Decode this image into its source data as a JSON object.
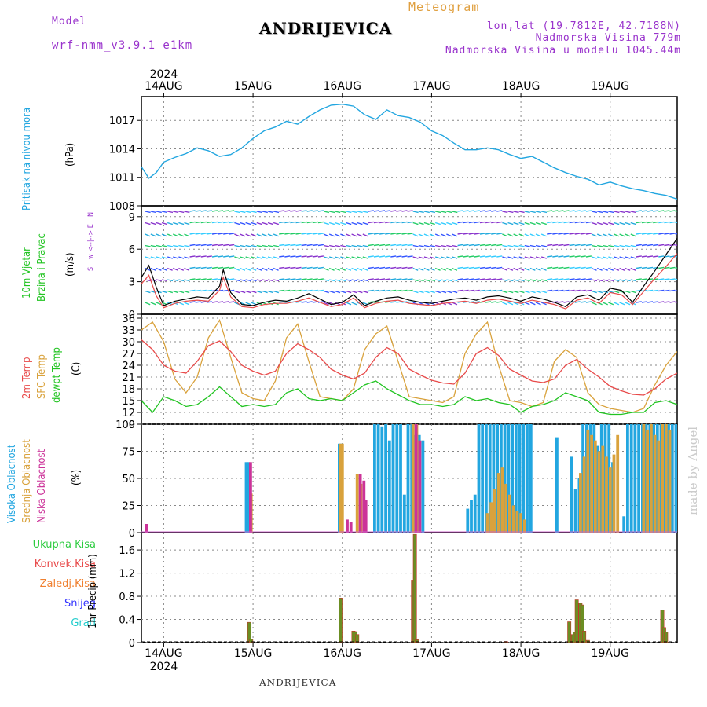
{
  "header": {
    "model_label": "Model",
    "model_name": "wrf-nmm_v3.9.1  e1km",
    "meteogram": "Meteogram",
    "station": "ANDRIJEVICA",
    "lonlat": "lon,lat (19.7812E, 42.7188N)",
    "elevation": "Nadmorska Visina 779m",
    "model_elevation": "Nadmorska Visina u modelu 1045.44m",
    "credit": "made by Angel",
    "footer_station": "ANDRIJEVICA"
  },
  "time_axis": {
    "year": "2024",
    "days": [
      "14AUG",
      "15AUG",
      "16AUG",
      "17AUG",
      "18AUG",
      "19AUG"
    ],
    "start_hour": 0,
    "end_hour": 144
  },
  "labels": {
    "pressure": [
      "Pritisak na nivou mora",
      "(hPa)"
    ],
    "wind": [
      "10m Vjetar",
      "Brzina i Pravac",
      "(m/s)"
    ],
    "compass": [
      "N",
      "w  <--|-->  E",
      "S"
    ],
    "temp": [
      "2m Temp",
      "SFC Temp",
      "dewpt Temp",
      "(C)"
    ],
    "cloud": [
      "Visoka Oblacnost",
      "Srednja Oblacnost",
      "Niska Oblacnost",
      "(%)"
    ],
    "precip_legend": [
      "Ukupna Kisa",
      "Konvek.Kisa",
      "Zaledj.Kisa",
      "Snijeg",
      "Grad"
    ],
    "precip_axis": "1hr Precip (mm)"
  },
  "colors": {
    "pressure": "#22a6e0",
    "temp2m": "#e84a4a",
    "sfc": "#d9a23c",
    "dewpt": "#22c422",
    "wind_speed": "#000000",
    "wind_gust": "#e84a4a",
    "high_cloud": "#22a6e0",
    "mid_cloud": "#d9a23c",
    "low_cloud": "#cc3399",
    "total_precip": "#2ecc40",
    "conv_precip": "#e84a4a",
    "frz_precip": "#f08030",
    "snow": "#3333ff",
    "hail": "#22cccc",
    "precip_bar": "#6b8e23",
    "grid": "#888888"
  },
  "chart_data": [
    {
      "type": "line",
      "name": "pressure",
      "ylabel": "(hPa)",
      "ylim": [
        1008,
        1019.5
      ],
      "yticks": [
        1008,
        1011,
        1014,
        1017
      ],
      "x": [
        0,
        2,
        4,
        6,
        9,
        12,
        15,
        18,
        21,
        24,
        27,
        30,
        33,
        36,
        39,
        42,
        45,
        48,
        51,
        54,
        57,
        60,
        63,
        66,
        69,
        72,
        75,
        78,
        81,
        84,
        87,
        90,
        93,
        96,
        99,
        102,
        105,
        108,
        111,
        114,
        117,
        120,
        123,
        126,
        129,
        132,
        135,
        138,
        141,
        144
      ],
      "series": [
        {
          "values": [
            1012.1,
            1010.9,
            1011.5,
            1012.6,
            1013.1,
            1013.5,
            1014.1,
            1013.8,
            1013.2,
            1013.4,
            1014.1,
            1015.1,
            1015.9,
            1016.3,
            1016.9,
            1016.6,
            1017.4,
            1018.1,
            1018.6,
            1018.7,
            1018.5,
            1017.6,
            1017.1,
            1018.1,
            1017.5,
            1017.3,
            1016.8,
            1015.9,
            1015.4,
            1014.6,
            1013.9,
            1013.9,
            1014.1,
            1013.9,
            1013.4,
            1013.0,
            1013.2,
            1012.6,
            1012.0,
            1011.5,
            1011.1,
            1010.8,
            1010.2,
            1010.5,
            1010.1,
            1009.8,
            1009.6,
            1009.3,
            1009.1,
            1008.7
          ]
        }
      ]
    },
    {
      "type": "line",
      "name": "wind",
      "ylabel": "(m/s)",
      "ylim": [
        0,
        10
      ],
      "yticks": [
        0,
        3,
        6,
        9
      ],
      "x": [
        0,
        2,
        4,
        6,
        9,
        12,
        15,
        18,
        21,
        22,
        24,
        27,
        30,
        33,
        36,
        39,
        42,
        45,
        48,
        51,
        54,
        57,
        60,
        63,
        66,
        69,
        72,
        75,
        78,
        81,
        84,
        87,
        90,
        93,
        96,
        99,
        102,
        105,
        108,
        111,
        114,
        117,
        120,
        123,
        126,
        129,
        132,
        135,
        138,
        141,
        144
      ],
      "series": [
        {
          "name": "speed",
          "values": [
            3.4,
            4.5,
            2.5,
            0.8,
            1.2,
            1.4,
            1.6,
            1.5,
            2.6,
            4.1,
            2.0,
            0.9,
            0.8,
            1.1,
            1.3,
            1.2,
            1.5,
            1.9,
            1.4,
            0.9,
            1.1,
            1.8,
            0.8,
            1.2,
            1.5,
            1.6,
            1.3,
            1.1,
            1.0,
            1.2,
            1.4,
            1.5,
            1.3,
            1.6,
            1.7,
            1.5,
            1.2,
            1.6,
            1.4,
            1.1,
            0.7,
            1.6,
            1.8,
            1.3,
            2.4,
            2.2,
            1.1,
            2.6,
            4.0,
            5.5,
            7.0
          ]
        },
        {
          "name": "gust",
          "values": [
            2.8,
            3.6,
            1.7,
            0.6,
            1.0,
            1.2,
            1.3,
            1.2,
            2.2,
            3.4,
            1.6,
            0.7,
            0.6,
            0.9,
            1.0,
            1.0,
            1.2,
            1.5,
            1.1,
            0.7,
            0.9,
            1.5,
            0.6,
            1.0,
            1.2,
            1.3,
            1.0,
            0.9,
            0.8,
            1.0,
            1.1,
            1.2,
            1.0,
            1.3,
            1.4,
            1.2,
            1.0,
            1.3,
            1.1,
            0.9,
            0.5,
            1.3,
            1.5,
            1.0,
            2.0,
            1.8,
            0.9,
            2.1,
            3.3,
            4.4,
            5.6
          ]
        }
      ]
    },
    {
      "type": "line",
      "name": "temperature",
      "ylabel": "(C)",
      "ylim": [
        9,
        37
      ],
      "yticks": [
        9,
        12,
        15,
        18,
        21,
        24,
        27,
        30,
        33,
        36
      ],
      "x": [
        0,
        3,
        6,
        9,
        12,
        15,
        18,
        21,
        24,
        27,
        30,
        33,
        36,
        39,
        42,
        45,
        48,
        51,
        54,
        57,
        60,
        63,
        66,
        69,
        72,
        75,
        78,
        81,
        84,
        87,
        90,
        93,
        96,
        99,
        102,
        105,
        108,
        111,
        114,
        117,
        120,
        123,
        126,
        129,
        132,
        135,
        138,
        141,
        144
      ],
      "series": [
        {
          "name": "2m",
          "values": [
            30.5,
            28,
            24,
            22.5,
            22,
            25,
            29,
            30.2,
            27.5,
            24,
            22.5,
            21.5,
            22.5,
            27,
            29.5,
            28,
            26,
            23,
            21.5,
            20.5,
            22,
            26,
            28.5,
            27,
            23,
            21.5,
            20.2,
            19.5,
            19.2,
            22,
            27,
            28.5,
            26.5,
            23,
            21.5,
            20,
            19.6,
            20.5,
            24,
            25.5,
            23,
            21,
            18.6,
            17.5,
            16.6,
            16.4,
            18,
            20.5,
            22
          ]
        },
        {
          "name": "sfc",
          "values": [
            33,
            35,
            30,
            20.5,
            17,
            21,
            31,
            35.5,
            26,
            17,
            15.5,
            15,
            20,
            31,
            34.5,
            25,
            16,
            15.5,
            15,
            18,
            28,
            32,
            34,
            25,
            16,
            15.5,
            15,
            14.5,
            16,
            27,
            32,
            35,
            24,
            15,
            14.5,
            13.5,
            14.5,
            25,
            28,
            26,
            17,
            14,
            13,
            12.5,
            12,
            13,
            19,
            24,
            27.5
          ]
        },
        {
          "name": "dewpt",
          "values": [
            15,
            12,
            16,
            15,
            13.5,
            14,
            16,
            18.5,
            16,
            13.5,
            14,
            13.5,
            14,
            17,
            18,
            15.5,
            15,
            15.5,
            15,
            17,
            19,
            20,
            18,
            16.5,
            15,
            14,
            14,
            13.5,
            14,
            16,
            15,
            15.5,
            14.5,
            14,
            12,
            13.5,
            14,
            15,
            17,
            16,
            15,
            12,
            11.5,
            11.5,
            12,
            12,
            14.5,
            15,
            14
          ]
        }
      ]
    },
    {
      "type": "bar",
      "name": "cloud",
      "ylabel": "(%)",
      "ylim": [
        0,
        100
      ],
      "yticks": [
        0,
        25,
        50,
        75,
        100
      ],
      "series": [
        {
          "name": "high",
          "x": [
            28.5,
            29,
            53.5,
            54,
            63,
            64,
            65,
            66,
            67,
            68,
            69,
            70,
            71,
            72,
            73,
            74,
            75,
            76,
            88,
            89,
            90,
            91,
            92,
            93,
            94,
            95,
            96,
            97,
            98,
            99,
            100,
            101,
            102,
            103,
            104,
            105,
            112,
            116,
            117,
            118,
            119,
            120,
            121,
            122,
            123,
            124,
            125,
            126,
            127,
            130,
            131,
            132,
            133,
            134,
            135,
            136,
            137,
            138,
            139,
            140,
            141,
            142,
            143,
            144
          ],
          "values": [
            65,
            65,
            82,
            82,
            100,
            100,
            98,
            100,
            85,
            100,
            100,
            100,
            35,
            100,
            100,
            90,
            90,
            85,
            22,
            30,
            35,
            100,
            100,
            100,
            100,
            100,
            100,
            100,
            100,
            100,
            100,
            100,
            100,
            100,
            100,
            100,
            88,
            70,
            40,
            50,
            100,
            100,
            100,
            100,
            80,
            100,
            100,
            100,
            65,
            15,
            100,
            100,
            100,
            100,
            100,
            100,
            100,
            100,
            100,
            100,
            100,
            100,
            100,
            100
          ]
        },
        {
          "name": "mid",
          "x": [
            29.5,
            53.5,
            54,
            58,
            59,
            73,
            74,
            93,
            94,
            95,
            96,
            97,
            98,
            99,
            100,
            101,
            102,
            103,
            118,
            119,
            120,
            121,
            122,
            123,
            124,
            125,
            126,
            127,
            128,
            135,
            136,
            137,
            138,
            139,
            140,
            141,
            142
          ],
          "values": [
            36,
            82,
            82,
            54,
            45,
            100,
            100,
            18,
            28,
            40,
            55,
            60,
            45,
            35,
            25,
            20,
            18,
            12,
            55,
            70,
            95,
            90,
            85,
            75,
            80,
            70,
            60,
            72,
            90,
            100,
            95,
            100,
            90,
            85,
            100,
            100,
            95
          ]
        },
        {
          "name": "low",
          "x": [
            1,
            29,
            55,
            56,
            58.5,
            59.5,
            60,
            73.5,
            74.5
          ],
          "values": [
            8,
            65,
            12,
            10,
            54,
            48,
            30,
            100,
            85
          ]
        }
      ]
    },
    {
      "type": "bar",
      "name": "precip",
      "ylabel": "1hr Precip (mm)",
      "ylim": [
        0,
        1.9
      ],
      "yticks": [
        0,
        0.4,
        0.8,
        1.2,
        1.6
      ],
      "x": [
        29,
        29.5,
        53.5,
        57,
        57.5,
        58,
        73,
        73.5,
        74,
        98,
        115,
        116,
        116.5,
        117,
        118,
        118.5,
        119,
        120,
        140,
        140.5,
        141
      ],
      "values": [
        0.35,
        0.06,
        0.77,
        0.2,
        0.19,
        0.14,
        1.08,
        1.87,
        0.05,
        0.02,
        0.36,
        0.14,
        0.18,
        0.74,
        0.68,
        0.65,
        0.2,
        0.04,
        0.56,
        0.26,
        0.18
      ]
    }
  ]
}
